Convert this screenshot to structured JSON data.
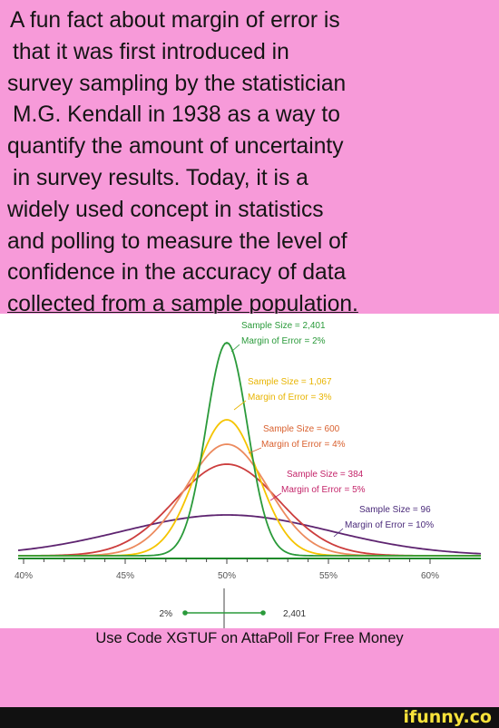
{
  "meme": {
    "fact_lines": [
      "A fun fact about margin of error is",
      "that it was first introduced in",
      "survey sampling by the statistician",
      "M.G. Kendall in 1938 as a way to",
      "quantify the amount of uncertainty",
      "in survey results. Today, it is a",
      "widely used concept in statistics",
      "and polling to measure the level of",
      "confidence in the accuracy of data",
      "collected from a sample population."
    ],
    "promo_text": "Use Code XGTUF on AttaPoll For Free Money",
    "watermark": "ifunny.co"
  },
  "chart_data": {
    "type": "line",
    "x_ticks": [
      "40%",
      "45%",
      "50%",
      "55%",
      "60%"
    ],
    "xlim": [
      40,
      60
    ],
    "center": 50,
    "series": [
      {
        "sample_size": "Sample Size = 2,401",
        "margin_of_error": "Margin of Error = 2%",
        "moe": 2,
        "color": "#2a9a3a",
        "label_color": "#2a9a3a"
      },
      {
        "sample_size": "Sample Size = 1,067",
        "margin_of_error": "Margin of Error = 3%",
        "moe": 3,
        "color": "#f5c400",
        "label_color": "#e8b400"
      },
      {
        "sample_size": "Sample Size = 600",
        "margin_of_error": "Margin of Error = 4%",
        "moe": 4,
        "color": "#ec8a5e",
        "label_color": "#d9602e"
      },
      {
        "sample_size": "Sample Size = 384",
        "margin_of_error": "Margin of Error = 5%",
        "moe": 5,
        "color": "#cc3d3d",
        "label_color": "#c4256a"
      },
      {
        "sample_size": "Sample Size = 96",
        "margin_of_error": "Margin of Error = 10%",
        "moe": 10,
        "color": "#5e2470",
        "label_color": "#4a2a7a"
      }
    ],
    "scale_legend": {
      "left_label": "2%",
      "right_label": "2,401",
      "color": "#2a9a3a"
    }
  }
}
